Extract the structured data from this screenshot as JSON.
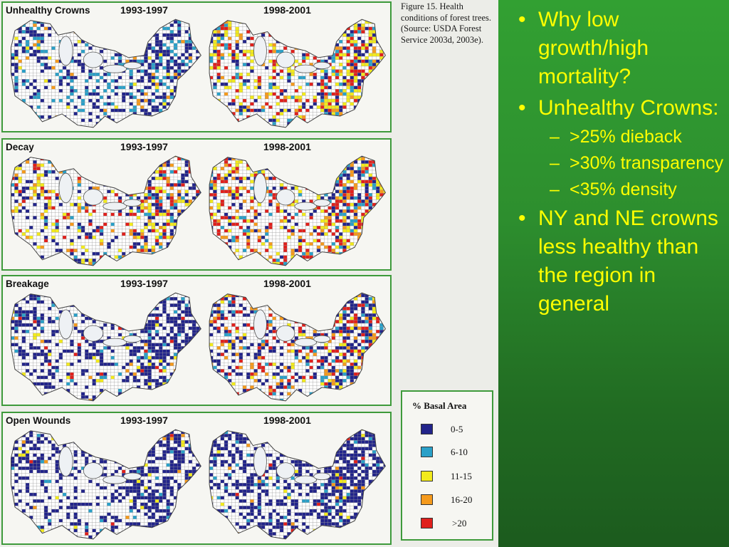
{
  "figure": {
    "caption": "Figure 15.  Health conditions of forest trees. (Source: USDA Forest Service 2003d, 2003e).",
    "periods": [
      "1993-1997",
      "1998-2001"
    ],
    "panels": [
      {
        "title": "Unhealthy Crowns"
      },
      {
        "title": "Decay"
      },
      {
        "title": "Breakage"
      },
      {
        "title": "Open Wounds"
      }
    ],
    "legend": {
      "title": "% Basal Area",
      "items": [
        {
          "label": "0-5",
          "color": "#22248a"
        },
        {
          "label": "6-10",
          "color": "#2aa0c8"
        },
        {
          "label": "11-15",
          "color": "#f2ea1c"
        },
        {
          "label": "16-20",
          "color": "#f59a1c"
        },
        {
          "label": ">20",
          "color": "#e0201c"
        }
      ]
    }
  },
  "slide": {
    "bullets": [
      {
        "text": "Why low growth/high mortality?",
        "sub": []
      },
      {
        "text": "Unhealthy Crowns:",
        "sub": [
          ">25% dieback",
          ">30% transparency",
          "<35% density"
        ]
      },
      {
        "text": "NY and NE crowns  less healthy than the region in general",
        "sub": []
      }
    ]
  },
  "colors": {
    "panel_border": "#3e9a3b",
    "slide_text": "#ffff00",
    "slide_bg": "#2d8e2e"
  }
}
